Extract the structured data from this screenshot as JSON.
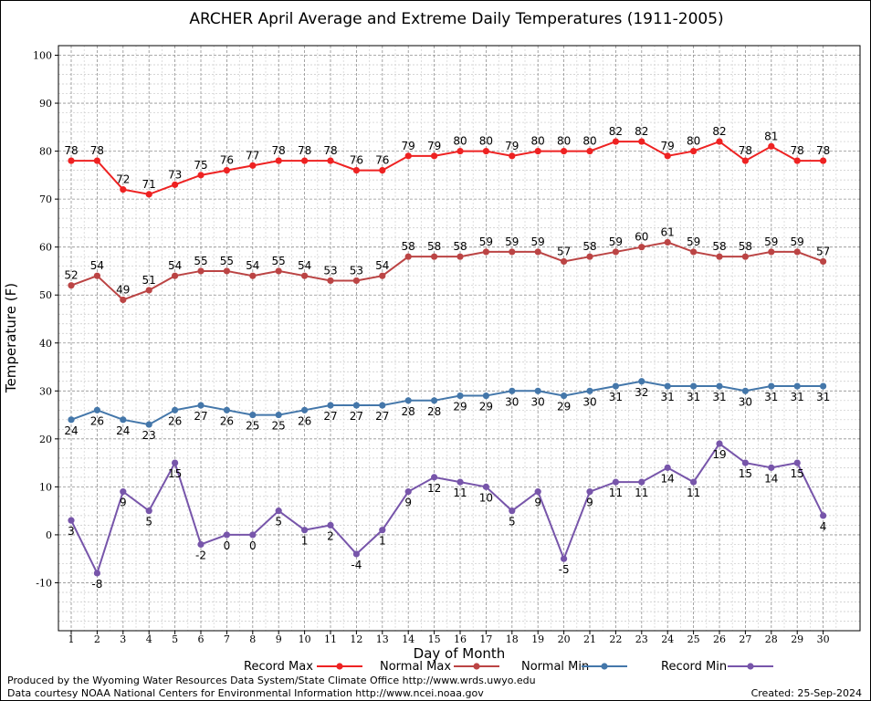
{
  "chart_data": {
    "type": "line",
    "title": "ARCHER April Average and Extreme Daily Temperatures (1911-2005)",
    "xlabel": "Day of Month",
    "ylabel": "Temperature (F)",
    "ylim": [
      -20,
      102
    ],
    "y_ticks": [
      -10,
      0,
      10,
      20,
      30,
      40,
      50,
      60,
      70,
      80,
      90,
      100
    ],
    "x": [
      1,
      2,
      3,
      4,
      5,
      6,
      7,
      8,
      9,
      10,
      11,
      12,
      13,
      14,
      15,
      16,
      17,
      18,
      19,
      20,
      21,
      22,
      23,
      24,
      25,
      26,
      27,
      28,
      29,
      30
    ],
    "grid": true,
    "legend_position": "bottom",
    "series": [
      {
        "name": "Record Max",
        "color": "#ee2222",
        "label_pos": "above",
        "values": [
          78,
          78,
          72,
          71,
          73,
          75,
          76,
          77,
          78,
          78,
          78,
          76,
          76,
          79,
          79,
          80,
          80,
          79,
          80,
          80,
          80,
          82,
          82,
          79,
          80,
          82,
          78,
          81,
          78,
          78
        ]
      },
      {
        "name": "Normal Max",
        "color": "#bb4444",
        "label_pos": "above",
        "values": [
          52,
          54,
          49,
          51,
          54,
          55,
          55,
          54,
          55,
          54,
          53,
          53,
          54,
          58,
          58,
          58,
          59,
          59,
          59,
          57,
          58,
          59,
          60,
          61,
          59,
          58,
          58,
          59,
          59,
          57
        ]
      },
      {
        "name": "Normal Min",
        "color": "#4477aa",
        "label_pos": "below",
        "values": [
          24,
          26,
          24,
          23,
          26,
          27,
          26,
          25,
          25,
          26,
          27,
          27,
          27,
          28,
          28,
          29,
          29,
          30,
          30,
          29,
          30,
          31,
          32,
          31,
          31,
          31,
          30,
          31,
          31,
          31
        ]
      },
      {
        "name": "Record Min",
        "color": "#7755aa",
        "label_pos": "below",
        "values": [
          3,
          -8,
          9,
          5,
          15,
          -2,
          0,
          0,
          5,
          1,
          2,
          -4,
          1,
          9,
          12,
          11,
          10,
          5,
          9,
          -5,
          9,
          11,
          11,
          14,
          11,
          19,
          15,
          14,
          15,
          4
        ]
      }
    ]
  },
  "footer": {
    "produced_by": "Produced by the Wyoming Water Resources Data System/State Climate Office http://www.wrds.uwyo.edu",
    "courtesy": "Data courtesy NOAA National Centers for Environmental Information http://www.ncei.noaa.gov",
    "created": "Created:  25-Sep-2024"
  }
}
